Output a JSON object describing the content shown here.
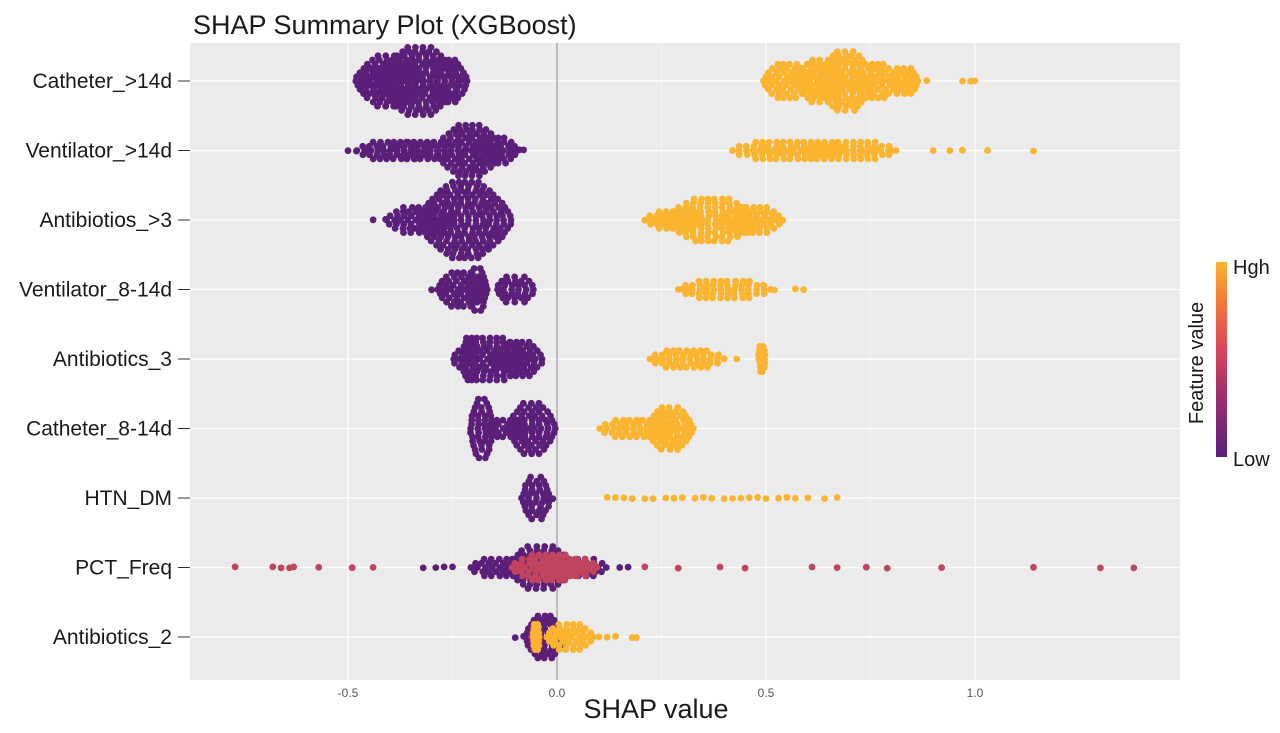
{
  "chart_data": {
    "type": "scatter",
    "title": "SHAP Summary Plot (XGBoost)",
    "xlabel": "SHAP value",
    "ylabel": "",
    "xlim": [
      -0.88,
      1.5
    ],
    "x_ticks": [
      -0.5,
      0.0,
      0.5,
      1.0
    ],
    "x_tick_labels": [
      "-0.5",
      "0.0",
      "0.5",
      "1.0"
    ],
    "grid": true,
    "zero_line": 0.0,
    "features": [
      {
        "name": "Catheter_>14d",
        "low_groups": [
          [
            -0.44,
            0.013,
            3,
            0.6
          ],
          [
            -0.4,
            0.037,
            6,
            0.6
          ],
          [
            -0.33,
            0.043,
            8,
            0.6
          ],
          [
            -0.26,
            0.02,
            5,
            0.6
          ]
        ],
        "low_points": [
          -0.465,
          -0.46,
          -0.43,
          -0.22
        ],
        "high_groups": [
          [
            0.55,
            0.025,
            4,
            0.6
          ],
          [
            0.63,
            0.025,
            5,
            0.6
          ],
          [
            0.69,
            0.03,
            7,
            0.6
          ],
          [
            0.76,
            0.025,
            4,
            0.6
          ],
          [
            0.83,
            0.015,
            3,
            0.6
          ]
        ],
        "high_points": [
          0.86,
          0.885,
          0.97,
          0.99,
          1.0
        ]
      },
      {
        "name": "Ventilator_>14d",
        "low_groups": [
          [
            -0.31,
            0.04,
            2,
            0.6
          ],
          [
            -0.21,
            0.035,
            6,
            0.6
          ],
          [
            -0.15,
            0.025,
            3,
            0.6
          ],
          [
            -0.39,
            0.04,
            2,
            0.6
          ]
        ],
        "low_points": [
          -0.5,
          -0.48,
          -0.46,
          -0.1,
          -0.09,
          -0.08
        ],
        "high_groups": [
          [
            0.55,
            0.06,
            2,
            0.6
          ],
          [
            0.7,
            0.05,
            2,
            0.6
          ]
        ],
        "high_points": [
          0.5,
          0.52,
          0.63,
          0.66,
          0.68,
          0.73,
          0.75,
          0.77,
          0.8,
          0.9,
          0.94,
          0.97,
          1.03,
          1.14
        ]
      },
      {
        "name": "Antibiotios_>3",
        "low_groups": [
          [
            -0.22,
            0.05,
            9,
            0.55
          ],
          [
            -0.33,
            0.035,
            3,
            0.6
          ]
        ],
        "low_points": [
          -0.44,
          -0.41,
          -0.38
        ],
        "high_groups": [
          [
            0.37,
            0.05,
            5,
            0.6
          ],
          [
            0.47,
            0.03,
            3,
            0.6
          ],
          [
            0.28,
            0.03,
            2,
            0.6
          ]
        ],
        "high_points": [
          0.21,
          0.23,
          0.53,
          0.54
        ]
      },
      {
        "name": "Ventilator_8-14d",
        "low_groups": [
          [
            -0.23,
            0.025,
            4,
            0.6
          ],
          [
            -0.19,
            0.01,
            5,
            0.6
          ],
          [
            -0.1,
            0.02,
            3,
            0.6
          ]
        ],
        "low_points": [
          -0.3,
          -0.28,
          -0.26
        ],
        "high_groups": [
          [
            0.4,
            0.05,
            2,
            0.6
          ]
        ],
        "high_points": [
          0.3,
          0.32,
          0.35,
          0.52,
          0.57,
          0.59
        ]
      },
      {
        "name": "Antibiotics_3",
        "low_groups": [
          [
            -0.21,
            0.006,
            5,
            0.6
          ],
          [
            -0.16,
            0.04,
            5,
            0.6
          ],
          [
            -0.09,
            0.025,
            4,
            0.6
          ]
        ],
        "low_points": [],
        "high_groups": [
          [
            0.31,
            0.04,
            2,
            0.6
          ],
          [
            0.49,
            0.003,
            3,
            0.6
          ]
        ],
        "high_points": [
          0.23,
          0.24,
          0.4,
          0.43
        ]
      },
      {
        "name": "Catheter_8-14d",
        "low_groups": [
          [
            -0.18,
            0.012,
            7,
            0.6
          ],
          [
            -0.06,
            0.025,
            6,
            0.6
          ],
          [
            -0.12,
            0.02,
            2,
            0.6
          ]
        ],
        "low_points": [],
        "high_groups": [
          [
            0.27,
            0.025,
            5,
            0.6
          ],
          [
            0.19,
            0.04,
            2,
            0.6
          ]
        ],
        "high_points": [
          0.15,
          0.16
        ]
      },
      {
        "name": "HTN_DM",
        "low_groups": [
          [
            -0.05,
            0.015,
            5,
            0.6
          ]
        ],
        "low_points": [
          -0.03,
          -0.02,
          -0.01
        ],
        "high_groups": [],
        "high_points": [
          0.12,
          0.14,
          0.16,
          0.18,
          0.21,
          0.23,
          0.26,
          0.28,
          0.3,
          0.33,
          0.35,
          0.37,
          0.4,
          0.42,
          0.44,
          0.46,
          0.48,
          0.5,
          0.53,
          0.55,
          0.57,
          0.6,
          0.64,
          0.67
        ]
      },
      {
        "name": "PCT_Freq",
        "low_groups": [
          [
            -0.04,
            0.035,
            5,
            0.55
          ],
          [
            -0.13,
            0.035,
            2,
            0.6
          ],
          [
            0.05,
            0.03,
            2,
            0.6
          ]
        ],
        "low_points": [
          -0.32,
          -0.29,
          -0.27,
          -0.25,
          -0.2,
          0.15,
          0.17
        ],
        "mid_groups": [
          [
            -0.02,
            0.04,
            3,
            0.6
          ],
          [
            0.03,
            0.03,
            2,
            0.6
          ]
        ],
        "mid_points": [
          -0.77,
          -0.68,
          -0.66,
          -0.64,
          -0.63,
          -0.57,
          -0.49,
          -0.44,
          0.21,
          0.29,
          0.39,
          0.45,
          0.61,
          0.67,
          0.74,
          0.79,
          0.92,
          1.14,
          1.3,
          1.38
        ],
        "high_groups": [],
        "high_points": []
      },
      {
        "name": "Antibiotics_2",
        "low_groups": [
          [
            -0.03,
            0.02,
            5,
            0.6
          ]
        ],
        "low_points": [
          -0.1,
          -0.08
        ],
        "mid_groups": [
          [
            -0.05,
            0.004,
            3,
            0.6
          ]
        ],
        "mid_points": [],
        "high_groups": [
          [
            0.03,
            0.025,
            3,
            0.6
          ],
          [
            -0.05,
            0.003,
            3,
            0.6
          ]
        ],
        "high_points": [
          0.06,
          0.08,
          0.1,
          0.12,
          0.14,
          0.18,
          0.19
        ]
      }
    ],
    "legend": {
      "title": "Feature value",
      "high_label": "Hgh",
      "low_label": "Low",
      "position": "right"
    },
    "colors": {
      "background": "#ebebeb",
      "grid": "#ffffff",
      "zero_line": "#999999",
      "low": "#5b1f7a",
      "mid": "#c0445e",
      "high": "#fbb42f",
      "gradient": [
        "#5b1f7a",
        "#9a2d6d",
        "#d8455a",
        "#f27a3a",
        "#fbb42f"
      ]
    }
  }
}
